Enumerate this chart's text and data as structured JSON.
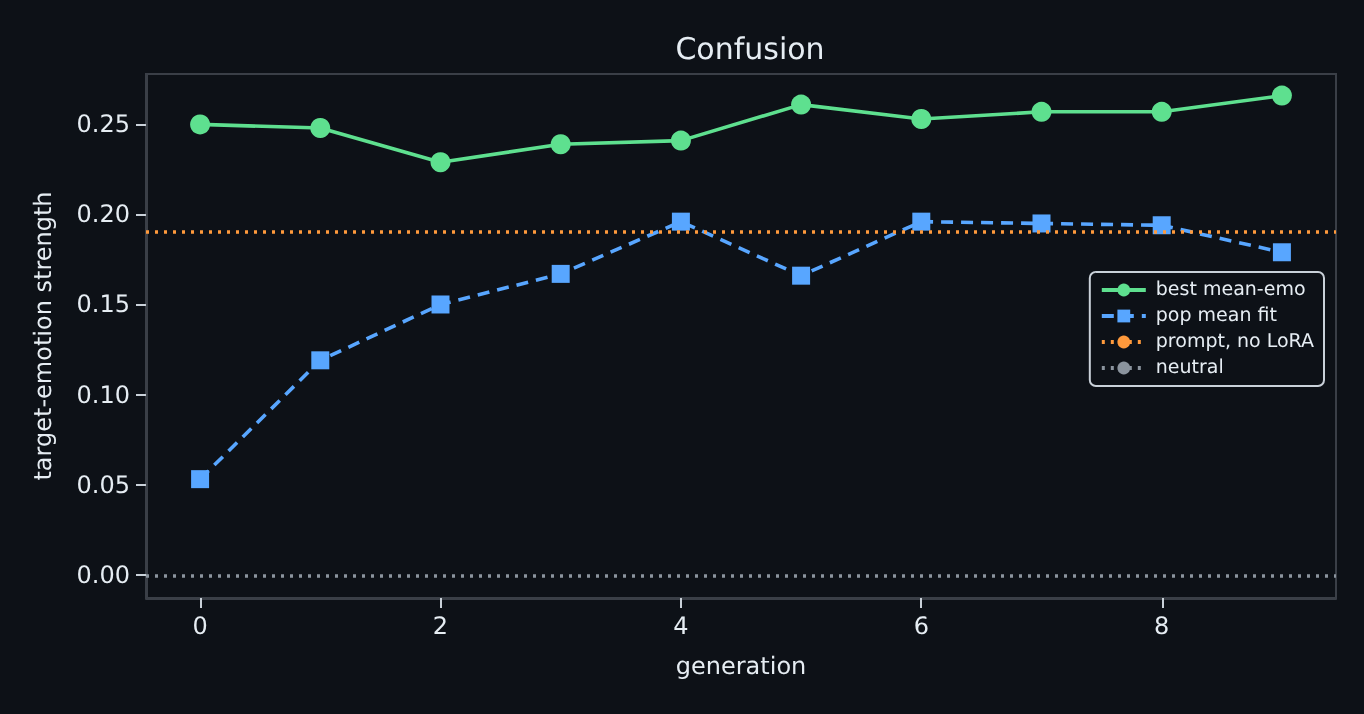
{
  "chart_data": {
    "type": "line",
    "title": "Confusion",
    "xlabel": "generation",
    "ylabel": "target-emotion strength",
    "x": [
      0,
      1,
      2,
      3,
      4,
      5,
      6,
      7,
      8,
      9
    ],
    "series": [
      {
        "name": "best mean-emo",
        "color": "#5ee08f",
        "marker": "circle",
        "line_style": "solid",
        "values": [
          0.25,
          0.248,
          0.229,
          0.239,
          0.241,
          0.261,
          0.253,
          0.257,
          0.257,
          0.266
        ]
      },
      {
        "name": "pop mean fit",
        "color": "#58a6ff",
        "marker": "square",
        "line_style": "dashed",
        "values": [
          0.053,
          0.119,
          0.15,
          0.167,
          0.196,
          0.166,
          0.196,
          0.195,
          0.194,
          0.179
        ]
      }
    ],
    "ref_lines": [
      {
        "axis": "y",
        "value": 0.19,
        "label": "prompt, no LoRA",
        "color": "#ff9a3c",
        "line_style": "dotted"
      },
      {
        "axis": "y",
        "value": 0,
        "label": "neutral",
        "color": "#8b949e",
        "line_style": "dotted"
      }
    ],
    "xlim": [
      -0.45,
      9.45
    ],
    "xticks": [
      0,
      2,
      4,
      6,
      8
    ],
    "ylim": [
      -0.013,
      0.278
    ],
    "yticks": [
      {
        "value": 0,
        "label": "0.00"
      },
      {
        "value": 0.05,
        "label": "0.05"
      },
      {
        "value": 0.1,
        "label": "0.10"
      },
      {
        "value": 0.15,
        "label": "0.15"
      },
      {
        "value": 0.2,
        "label": "0.20"
      },
      {
        "value": 0.25,
        "label": "0.25"
      }
    ],
    "grid": false,
    "legend": "center right"
  }
}
